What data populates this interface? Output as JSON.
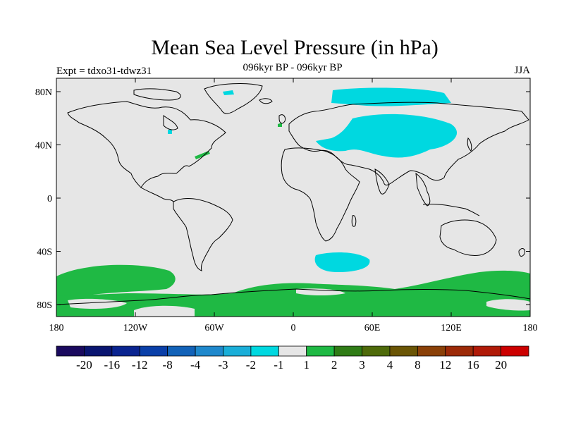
{
  "header": {
    "title": "Mean Sea Level Pressure (in hPa)",
    "subtitle": "096kyr BP - 096kyr BP",
    "expt": "Expt = tdxo31-tdwz31",
    "season": "JJA"
  },
  "map": {
    "lat_ticks": [
      {
        "value": 80,
        "label": "80N"
      },
      {
        "value": 40,
        "label": "40N"
      },
      {
        "value": 0,
        "label": "0"
      },
      {
        "value": -40,
        "label": "40S"
      },
      {
        "value": -80,
        "label": "80S"
      }
    ],
    "lon_ticks": [
      {
        "value": -180,
        "label": "180"
      },
      {
        "value": -120,
        "label": "120W"
      },
      {
        "value": -60,
        "label": "60W"
      },
      {
        "value": 0,
        "label": "0"
      },
      {
        "value": 60,
        "label": "60E"
      },
      {
        "value": 120,
        "label": "120E"
      },
      {
        "value": 180,
        "label": "180"
      }
    ],
    "colors": {
      "ocean_bg": "#e6e6e6",
      "cyan": "#00d8e0",
      "green": "#1fb944",
      "coast": "#000000"
    }
  },
  "colorbar": {
    "colors": [
      "#1a0a5e",
      "#0a1570",
      "#0a2490",
      "#0a3fa8",
      "#1262b8",
      "#1f88cc",
      "#1aaed8",
      "#00d8e0",
      "#e6e6e6",
      "#1fb944",
      "#2f7c16",
      "#4e6a0a",
      "#6a5505",
      "#8a4008",
      "#9c2a08",
      "#b01a08",
      "#cc0000"
    ],
    "labels": [
      "-20",
      "-16",
      "-12",
      "-8",
      "-4",
      "-3",
      "-2",
      "-1",
      "1",
      "2",
      "3",
      "4",
      "8",
      "12",
      "16",
      "20"
    ]
  }
}
